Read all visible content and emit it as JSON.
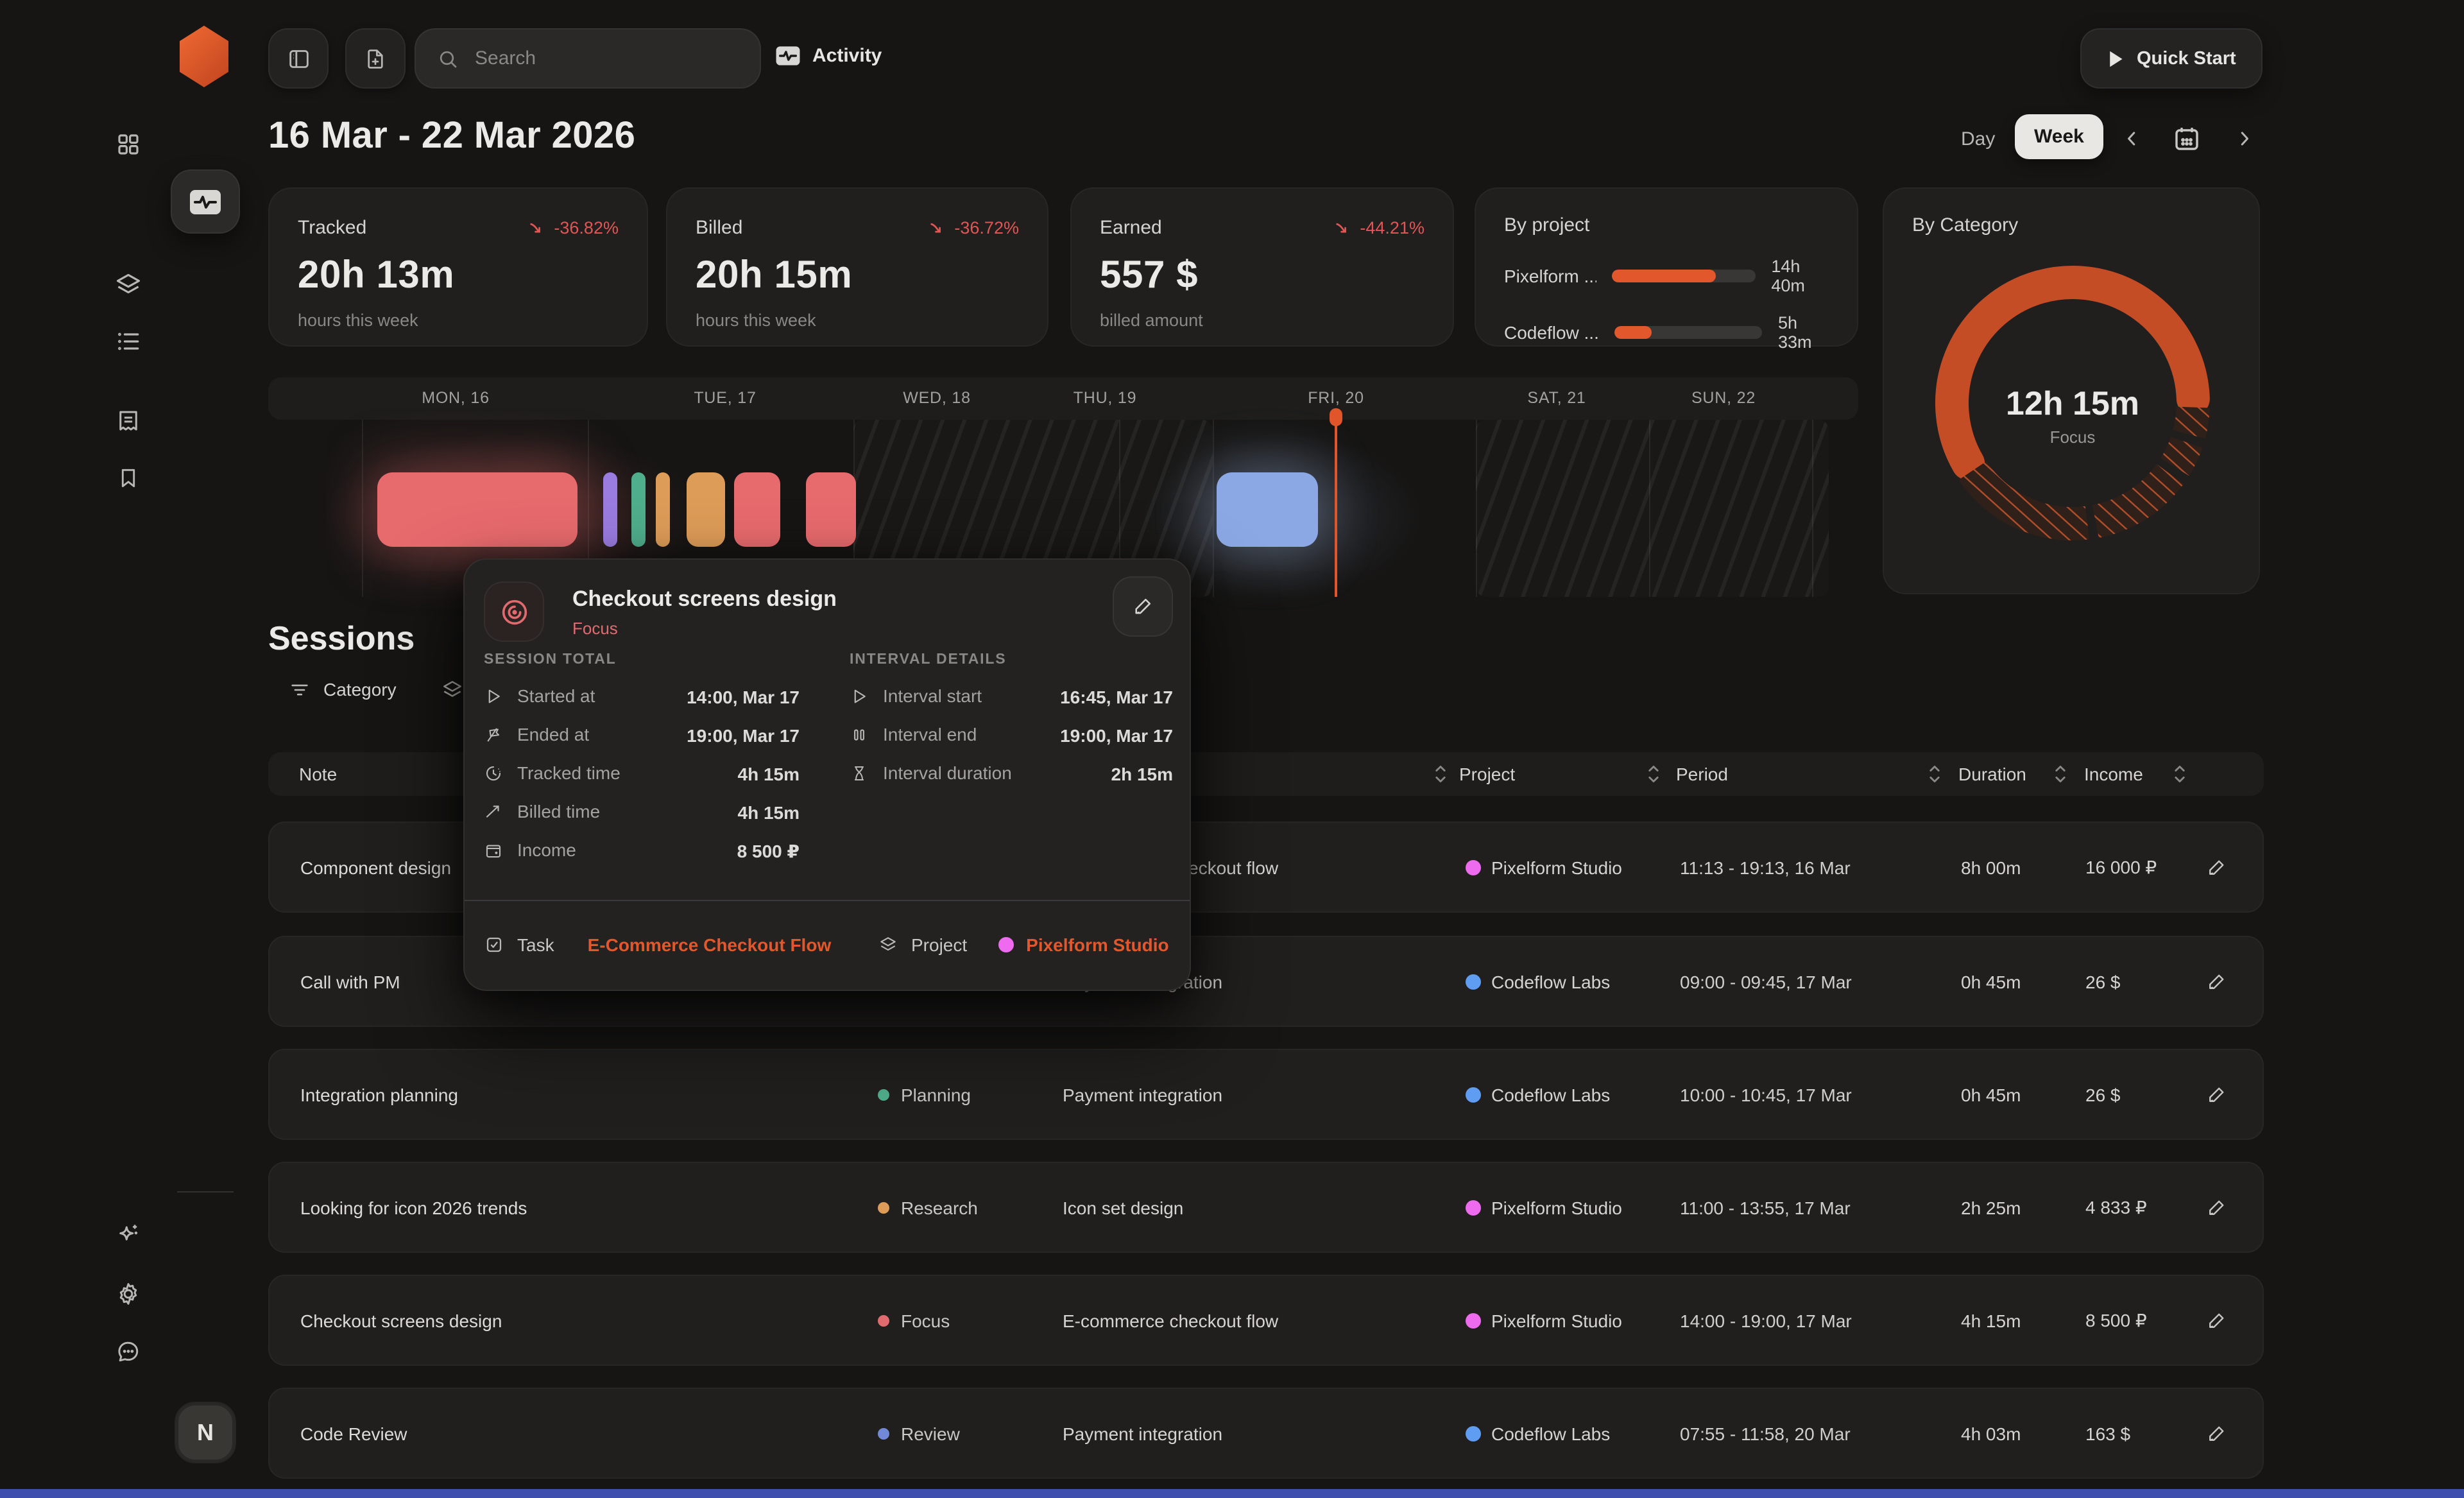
{
  "topbar": {
    "search_placeholder": "Search",
    "activity_label": "Activity",
    "quick_start_label": "Quick Start"
  },
  "header": {
    "date_range": "16 Mar - 22 Mar 2026",
    "day_label": "Day",
    "week_label": "Week"
  },
  "stats": {
    "tracked": {
      "label": "Tracked",
      "delta": "-36.82%",
      "value": "20h 13m",
      "caption": "hours this week"
    },
    "billed": {
      "label": "Billed",
      "delta": "-36.72%",
      "value": "20h 15m",
      "caption": "hours this week"
    },
    "earned": {
      "label": "Earned",
      "delta": "-44.21%",
      "value": "557 $",
      "caption": "billed amount"
    },
    "by_project": {
      "title": "By project",
      "rows": [
        {
          "name": "Pixelform ...",
          "value": "14h 40m",
          "percent": "72%"
        },
        {
          "name": "Codeflow ...",
          "value": "5h 33m",
          "percent": "25%"
        }
      ]
    },
    "by_category": {
      "title": "By Category",
      "center_value": "12h 15m",
      "center_label": "Focus"
    }
  },
  "chart_data": {
    "type": "donut",
    "title": "By Category",
    "center_value": "12h 15m",
    "center_label": "Focus",
    "color": "#c54d26",
    "segments": [
      {
        "name": "Focus",
        "start": 240,
        "end": 88,
        "hatch": false
      },
      {
        "name": "other-1",
        "start": 92,
        "end": 105,
        "hatch": true
      },
      {
        "name": "other-2",
        "start": 109,
        "end": 122,
        "hatch": true
      },
      {
        "name": "other-3",
        "start": 126,
        "end": 169,
        "hatch": true
      },
      {
        "name": "other-4",
        "start": 173,
        "end": 236,
        "hatch": true
      }
    ]
  },
  "timeline": {
    "days": [
      "MON, 16",
      "TUE, 17",
      "WED, 18",
      "THU, 19",
      "FRI, 20",
      "SAT, 21",
      "SUN, 22"
    ]
  },
  "popup": {
    "title": "Checkout screens design",
    "category": "Focus",
    "session_total_label": "SESSION TOTAL",
    "interval_details_label": "INTERVAL DETAILS",
    "session_rows": [
      {
        "label": "Started at",
        "value": "14:00, Mar 17"
      },
      {
        "label": "Ended at",
        "value": "19:00, Mar 17"
      },
      {
        "label": "Tracked time",
        "value": "4h 15m"
      },
      {
        "label": "Billed time",
        "value": "4h 15m"
      },
      {
        "label": "Income",
        "value": "8 500 ₽"
      }
    ],
    "interval_rows": [
      {
        "label": "Interval start",
        "value": "16:45, Mar 17"
      },
      {
        "label": "Interval end",
        "value": "19:00, Mar 17"
      },
      {
        "label": "Interval duration",
        "value": "2h 15m"
      }
    ],
    "task_label": "Task",
    "task_value": "E-Commerce Checkout Flow",
    "project_label": "Project",
    "project_value": "Pixelform Studio",
    "project_color": "#ee6bf0"
  },
  "sessions": {
    "title": "Sessions",
    "filter_category_label": "Category",
    "columns": {
      "note": "Note",
      "project": "Project",
      "period": "Period",
      "duration": "Duration",
      "income": "Income"
    },
    "rows": [
      {
        "note": "Component design",
        "category": "",
        "category_color": "",
        "task": "E-commerce checkout flow",
        "project": "Pixelform Studio",
        "project_color": "#ee6bf0",
        "period": "11:13 - 19:13, 16 Mar",
        "duration": "8h 00m",
        "income": "16 000 ₽"
      },
      {
        "note": "Call with PM",
        "category": "",
        "category_color": "",
        "task": "Payment integration",
        "project": "Codeflow Labs",
        "project_color": "#5f9df2",
        "period": "09:00 - 09:45, 17 Mar",
        "duration": "0h 45m",
        "income": "26 $"
      },
      {
        "note": "Integration planning",
        "category": "Planning",
        "category_color": "#4fae8c",
        "task": "Payment integration",
        "project": "Codeflow Labs",
        "project_color": "#5f9df2",
        "period": "10:00 - 10:45, 17 Mar",
        "duration": "0h 45m",
        "income": "26 $"
      },
      {
        "note": "Looking for icon 2026 trends",
        "category": "Research",
        "category_color": "#dd9c58",
        "task": "Icon set design",
        "project": "Pixelform Studio",
        "project_color": "#ee6bf0",
        "period": "11:00 - 13:55, 17 Mar",
        "duration": "2h 25m",
        "income": "4 833 ₽"
      },
      {
        "note": "Checkout screens design",
        "category": "Focus",
        "category_color": "#e06a6e",
        "task": "E-commerce checkout flow",
        "project": "Pixelform Studio",
        "project_color": "#ee6bf0",
        "period": "14:00 - 19:00, 17 Mar",
        "duration": "4h 15m",
        "income": "8 500 ₽"
      },
      {
        "note": "Code Review",
        "category": "Review",
        "category_color": "#7288d8",
        "task": "Payment integration",
        "project": "Codeflow Labs",
        "project_color": "#5f9df2",
        "period": "07:55 - 11:58, 20 Mar",
        "duration": "4h 03m",
        "income": "163 $"
      }
    ]
  },
  "sidebar": {
    "avatar_initial": "N"
  }
}
